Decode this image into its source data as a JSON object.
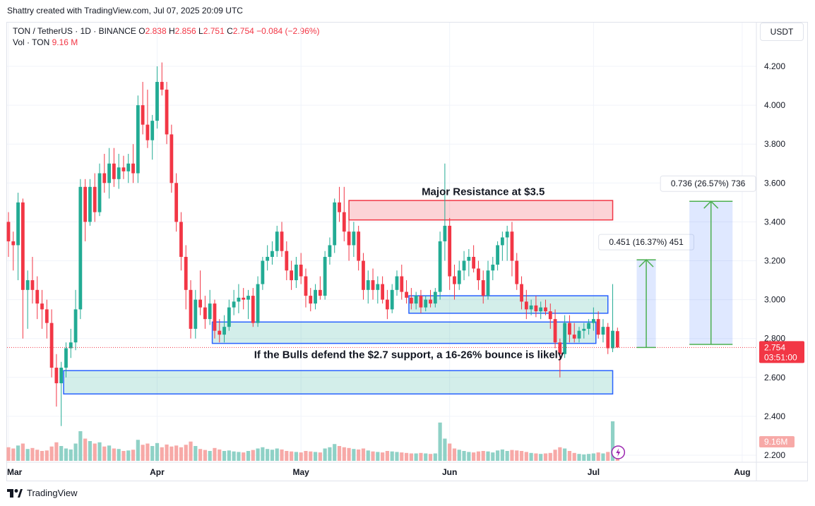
{
  "caption": "Shattry created with TradingView.com, Jul 07, 2025 20:09 UTC",
  "legend": {
    "symbol": "TON / TetherUS · 1D · BINANCE",
    "o_label": "O",
    "o": "2.838",
    "h_label": "H",
    "h": "2.856",
    "l_label": "L",
    "l": "2.751",
    "c_label": "C",
    "c": "2.754",
    "change": "−0.084 (−2.96%)",
    "vol_label": "Vol · TON",
    "vol": "9.16 M"
  },
  "currency_button": "USDT",
  "footer_brand": "TradingView",
  "colors": {
    "up": "#22ab94",
    "down": "#f23645",
    "up_vol": "#8fd1c6",
    "down_vol": "#f7a9a7"
  },
  "chart_data": {
    "type": "candlestick",
    "ylim": [
      2.2,
      4.3
    ],
    "y_ticks": [
      "4.200",
      "4.000",
      "3.800",
      "3.600",
      "3.400",
      "3.200",
      "3.000",
      "2.800",
      "2.600",
      "2.400",
      "2.200"
    ],
    "x_ticks": [
      {
        "label": "Mar",
        "day": 0
      },
      {
        "label": "Apr",
        "day": 31
      },
      {
        "label": "May",
        "day": 61
      },
      {
        "label": "Jun",
        "day": 92
      },
      {
        "label": "Jul",
        "day": 122
      },
      {
        "label": "Aug",
        "day": 153
      }
    ],
    "last_price": "2.754",
    "last_price_value": 2.754,
    "countdown": "03:51:00",
    "volume_badge": "9.16M",
    "zones": [
      {
        "name": "resistance-zone",
        "type": "resistance",
        "d0": 71,
        "d1": 126,
        "top": 3.51,
        "bottom": 3.41
      },
      {
        "name": "upper-support-zone",
        "type": "support",
        "d0": 83.5,
        "d1": 125,
        "top": 3.02,
        "bottom": 2.93
      },
      {
        "name": "mid-support-zone",
        "type": "support",
        "d0": 42.5,
        "d1": 122.5,
        "top": 2.885,
        "bottom": 2.775
      },
      {
        "name": "lower-support-zone",
        "type": "support",
        "d0": 11.5,
        "d1": 126,
        "top": 2.635,
        "bottom": 2.515
      }
    ],
    "projections": [
      {
        "name": "projection-small",
        "d0": 131,
        "d1": 135,
        "from": 2.754,
        "to": 3.205,
        "label": "0.451 (16.37%) 451"
      },
      {
        "name": "projection-large",
        "d0": 142,
        "d1": 151,
        "from": 2.77,
        "to": 3.506,
        "label": "0.736 (26.57%) 736"
      }
    ],
    "annotations": [
      {
        "name": "resistance-annotation",
        "text": "Major Resistance at $3.5",
        "day": 99,
        "price": 3.56
      },
      {
        "name": "support-annotation",
        "text": "If the Bulls defend the $2.7 support, a 16-26% bounce is likely",
        "day": 83.5,
        "price": 2.72
      }
    ],
    "candles": [
      {
        "o": 3.4,
        "h": 3.45,
        "l": 3.22,
        "c": 3.3,
        "v": 0.55
      },
      {
        "o": 3.3,
        "h": 3.35,
        "l": 3.15,
        "c": 3.28,
        "v": 0.5
      },
      {
        "o": 3.28,
        "h": 3.55,
        "l": 3.1,
        "c": 3.5,
        "v": 0.62
      },
      {
        "o": 3.5,
        "h": 3.52,
        "l": 2.8,
        "c": 3.05,
        "v": 0.7
      },
      {
        "o": 3.05,
        "h": 3.15,
        "l": 2.85,
        "c": 3.1,
        "v": 0.48
      },
      {
        "o": 3.1,
        "h": 3.22,
        "l": 2.98,
        "c": 3.05,
        "v": 0.52
      },
      {
        "o": 3.05,
        "h": 3.12,
        "l": 2.9,
        "c": 2.98,
        "v": 0.45
      },
      {
        "o": 2.98,
        "h": 3.05,
        "l": 2.85,
        "c": 2.95,
        "v": 0.4
      },
      {
        "o": 2.95,
        "h": 3.0,
        "l": 2.8,
        "c": 2.88,
        "v": 0.42
      },
      {
        "o": 2.88,
        "h": 2.95,
        "l": 2.6,
        "c": 2.65,
        "v": 0.58
      },
      {
        "o": 2.65,
        "h": 2.72,
        "l": 2.45,
        "c": 2.57,
        "v": 0.75
      },
      {
        "o": 2.57,
        "h": 2.68,
        "l": 2.35,
        "c": 2.65,
        "v": 0.6
      },
      {
        "o": 2.65,
        "h": 2.78,
        "l": 2.6,
        "c": 2.75,
        "v": 0.5
      },
      {
        "o": 2.75,
        "h": 2.85,
        "l": 2.7,
        "c": 2.78,
        "v": 0.46
      },
      {
        "o": 2.78,
        "h": 3.05,
        "l": 2.74,
        "c": 2.95,
        "v": 0.7
      },
      {
        "o": 2.95,
        "h": 3.62,
        "l": 2.9,
        "c": 3.58,
        "v": 1.2
      },
      {
        "o": 3.58,
        "h": 3.62,
        "l": 3.3,
        "c": 3.4,
        "v": 0.9
      },
      {
        "o": 3.4,
        "h": 3.62,
        "l": 3.38,
        "c": 3.58,
        "v": 0.8
      },
      {
        "o": 3.58,
        "h": 3.65,
        "l": 3.4,
        "c": 3.45,
        "v": 0.7
      },
      {
        "o": 3.45,
        "h": 3.7,
        "l": 3.43,
        "c": 3.65,
        "v": 0.75
      },
      {
        "o": 3.65,
        "h": 3.75,
        "l": 3.55,
        "c": 3.6,
        "v": 0.58
      },
      {
        "o": 3.6,
        "h": 3.78,
        "l": 3.52,
        "c": 3.7,
        "v": 0.62
      },
      {
        "o": 3.7,
        "h": 3.78,
        "l": 3.58,
        "c": 3.62,
        "v": 0.5
      },
      {
        "o": 3.62,
        "h": 3.75,
        "l": 3.57,
        "c": 3.68,
        "v": 0.48
      },
      {
        "o": 3.68,
        "h": 3.74,
        "l": 3.62,
        "c": 3.66,
        "v": 0.4
      },
      {
        "o": 3.66,
        "h": 3.75,
        "l": 3.6,
        "c": 3.7,
        "v": 0.42
      },
      {
        "o": 3.7,
        "h": 3.8,
        "l": 3.6,
        "c": 3.65,
        "v": 0.45
      },
      {
        "o": 3.65,
        "h": 4.05,
        "l": 3.6,
        "c": 4.0,
        "v": 0.85
      },
      {
        "o": 4.0,
        "h": 4.12,
        "l": 3.85,
        "c": 3.9,
        "v": 0.65
      },
      {
        "o": 3.9,
        "h": 4.08,
        "l": 3.78,
        "c": 3.82,
        "v": 0.7
      },
      {
        "o": 3.82,
        "h": 3.95,
        "l": 3.72,
        "c": 3.92,
        "v": 0.6
      },
      {
        "o": 3.92,
        "h": 4.2,
        "l": 3.88,
        "c": 4.12,
        "v": 0.72
      },
      {
        "o": 4.12,
        "h": 4.22,
        "l": 4.05,
        "c": 4.08,
        "v": 0.55
      },
      {
        "o": 4.08,
        "h": 4.12,
        "l": 3.8,
        "c": 3.85,
        "v": 0.66
      },
      {
        "o": 3.85,
        "h": 3.9,
        "l": 3.55,
        "c": 3.6,
        "v": 0.58
      },
      {
        "o": 3.6,
        "h": 3.65,
        "l": 3.35,
        "c": 3.4,
        "v": 0.62
      },
      {
        "o": 3.4,
        "h": 3.45,
        "l": 3.15,
        "c": 3.22,
        "v": 0.55
      },
      {
        "o": 3.22,
        "h": 3.28,
        "l": 2.95,
        "c": 3.05,
        "v": 0.65
      },
      {
        "o": 3.05,
        "h": 3.1,
        "l": 2.8,
        "c": 2.85,
        "v": 0.78
      },
      {
        "o": 2.85,
        "h": 3.05,
        "l": 2.8,
        "c": 3.0,
        "v": 0.6
      },
      {
        "o": 3.0,
        "h": 3.15,
        "l": 2.92,
        "c": 2.96,
        "v": 0.48
      },
      {
        "o": 2.96,
        "h": 3.02,
        "l": 2.85,
        "c": 2.9,
        "v": 0.44
      },
      {
        "o": 2.9,
        "h": 3.05,
        "l": 2.87,
        "c": 2.98,
        "v": 0.4
      },
      {
        "o": 2.98,
        "h": 3.0,
        "l": 2.8,
        "c": 2.84,
        "v": 0.52
      },
      {
        "o": 2.84,
        "h": 2.9,
        "l": 2.78,
        "c": 2.82,
        "v": 0.46
      },
      {
        "o": 2.82,
        "h": 2.92,
        "l": 2.78,
        "c": 2.86,
        "v": 0.4
      },
      {
        "o": 2.86,
        "h": 3.0,
        "l": 2.84,
        "c": 2.96,
        "v": 0.42
      },
      {
        "o": 2.96,
        "h": 3.05,
        "l": 2.92,
        "c": 2.99,
        "v": 0.38
      },
      {
        "o": 2.99,
        "h": 3.08,
        "l": 2.93,
        "c": 3.01,
        "v": 0.36
      },
      {
        "o": 3.01,
        "h": 3.06,
        "l": 2.95,
        "c": 3.0,
        "v": 0.34
      },
      {
        "o": 3.0,
        "h": 3.05,
        "l": 2.9,
        "c": 3.02,
        "v": 0.4
      },
      {
        "o": 3.02,
        "h": 3.06,
        "l": 2.86,
        "c": 2.88,
        "v": 0.44
      },
      {
        "o": 2.88,
        "h": 3.12,
        "l": 2.86,
        "c": 3.08,
        "v": 0.5
      },
      {
        "o": 3.08,
        "h": 3.22,
        "l": 3.05,
        "c": 3.2,
        "v": 0.55
      },
      {
        "o": 3.2,
        "h": 3.28,
        "l": 3.15,
        "c": 3.22,
        "v": 0.48
      },
      {
        "o": 3.22,
        "h": 3.3,
        "l": 3.18,
        "c": 3.25,
        "v": 0.45
      },
      {
        "o": 3.25,
        "h": 3.38,
        "l": 3.22,
        "c": 3.35,
        "v": 0.5
      },
      {
        "o": 3.35,
        "h": 3.4,
        "l": 3.22,
        "c": 3.25,
        "v": 0.46
      },
      {
        "o": 3.25,
        "h": 3.3,
        "l": 3.1,
        "c": 3.15,
        "v": 0.4
      },
      {
        "o": 3.15,
        "h": 3.2,
        "l": 3.05,
        "c": 3.1,
        "v": 0.38
      },
      {
        "o": 3.1,
        "h": 3.22,
        "l": 3.06,
        "c": 3.18,
        "v": 0.36
      },
      {
        "o": 3.18,
        "h": 3.24,
        "l": 3.08,
        "c": 3.12,
        "v": 0.34
      },
      {
        "o": 3.12,
        "h": 3.16,
        "l": 2.96,
        "c": 3.02,
        "v": 0.4
      },
      {
        "o": 3.02,
        "h": 3.06,
        "l": 2.94,
        "c": 2.98,
        "v": 0.38
      },
      {
        "o": 2.98,
        "h": 3.08,
        "l": 2.95,
        "c": 3.05,
        "v": 0.36
      },
      {
        "o": 3.05,
        "h": 3.12,
        "l": 3.0,
        "c": 3.02,
        "v": 0.34
      },
      {
        "o": 3.02,
        "h": 3.25,
        "l": 3.0,
        "c": 3.22,
        "v": 0.5
      },
      {
        "o": 3.22,
        "h": 3.32,
        "l": 3.18,
        "c": 3.28,
        "v": 0.55
      },
      {
        "o": 3.28,
        "h": 3.52,
        "l": 3.24,
        "c": 3.5,
        "v": 0.68
      },
      {
        "o": 3.5,
        "h": 3.58,
        "l": 3.4,
        "c": 3.45,
        "v": 0.6
      },
      {
        "o": 3.45,
        "h": 3.58,
        "l": 3.3,
        "c": 3.35,
        "v": 0.55
      },
      {
        "o": 3.35,
        "h": 3.42,
        "l": 3.2,
        "c": 3.28,
        "v": 0.52
      },
      {
        "o": 3.28,
        "h": 3.4,
        "l": 3.22,
        "c": 3.35,
        "v": 0.48
      },
      {
        "o": 3.35,
        "h": 3.38,
        "l": 3.15,
        "c": 3.2,
        "v": 0.46
      },
      {
        "o": 3.2,
        "h": 3.24,
        "l": 3.0,
        "c": 3.05,
        "v": 0.5
      },
      {
        "o": 3.05,
        "h": 3.15,
        "l": 2.98,
        "c": 3.1,
        "v": 0.42
      },
      {
        "o": 3.1,
        "h": 3.16,
        "l": 3.0,
        "c": 3.05,
        "v": 0.38
      },
      {
        "o": 3.05,
        "h": 3.12,
        "l": 2.98,
        "c": 3.08,
        "v": 0.36
      },
      {
        "o": 3.08,
        "h": 3.12,
        "l": 2.98,
        "c": 3.0,
        "v": 0.34
      },
      {
        "o": 3.0,
        "h": 3.05,
        "l": 2.9,
        "c": 2.95,
        "v": 0.4
      },
      {
        "o": 2.95,
        "h": 3.08,
        "l": 2.93,
        "c": 3.05,
        "v": 0.38
      },
      {
        "o": 3.05,
        "h": 3.15,
        "l": 3.02,
        "c": 3.12,
        "v": 0.36
      },
      {
        "o": 3.12,
        "h": 3.18,
        "l": 3.0,
        "c": 3.04,
        "v": 0.34
      },
      {
        "o": 3.04,
        "h": 3.1,
        "l": 2.98,
        "c": 3.01,
        "v": 0.32
      },
      {
        "o": 3.01,
        "h": 3.06,
        "l": 2.95,
        "c": 2.98,
        "v": 0.3
      },
      {
        "o": 2.98,
        "h": 3.04,
        "l": 2.95,
        "c": 3.02,
        "v": 0.3
      },
      {
        "o": 3.02,
        "h": 3.05,
        "l": 2.93,
        "c": 2.96,
        "v": 0.32
      },
      {
        "o": 2.96,
        "h": 3.02,
        "l": 2.94,
        "c": 3.0,
        "v": 0.3
      },
      {
        "o": 3.0,
        "h": 3.05,
        "l": 2.96,
        "c": 2.98,
        "v": 0.28
      },
      {
        "o": 2.98,
        "h": 3.06,
        "l": 2.96,
        "c": 3.04,
        "v": 0.3
      },
      {
        "o": 3.04,
        "h": 3.35,
        "l": 3.0,
        "c": 3.3,
        "v": 1.55
      },
      {
        "o": 3.3,
        "h": 3.7,
        "l": 3.2,
        "c": 3.38,
        "v": 0.9
      },
      {
        "o": 3.38,
        "h": 3.42,
        "l": 3.05,
        "c": 3.12,
        "v": 0.7
      },
      {
        "o": 3.12,
        "h": 3.18,
        "l": 3.0,
        "c": 3.08,
        "v": 0.5
      },
      {
        "o": 3.08,
        "h": 3.2,
        "l": 3.05,
        "c": 3.15,
        "v": 0.45
      },
      {
        "o": 3.15,
        "h": 3.25,
        "l": 3.1,
        "c": 3.2,
        "v": 0.4
      },
      {
        "o": 3.2,
        "h": 3.26,
        "l": 3.12,
        "c": 3.22,
        "v": 0.36
      },
      {
        "o": 3.22,
        "h": 3.28,
        "l": 3.14,
        "c": 3.16,
        "v": 0.34
      },
      {
        "o": 3.16,
        "h": 3.2,
        "l": 3.05,
        "c": 3.1,
        "v": 0.38
      },
      {
        "o": 3.1,
        "h": 3.15,
        "l": 2.98,
        "c": 3.02,
        "v": 0.4
      },
      {
        "o": 3.02,
        "h": 3.2,
        "l": 3.0,
        "c": 3.15,
        "v": 0.38
      },
      {
        "o": 3.15,
        "h": 3.22,
        "l": 3.1,
        "c": 3.18,
        "v": 0.34
      },
      {
        "o": 3.18,
        "h": 3.3,
        "l": 3.15,
        "c": 3.28,
        "v": 0.42
      },
      {
        "o": 3.28,
        "h": 3.35,
        "l": 3.2,
        "c": 3.32,
        "v": 0.46
      },
      {
        "o": 3.32,
        "h": 3.38,
        "l": 3.2,
        "c": 3.35,
        "v": 0.4
      },
      {
        "o": 3.35,
        "h": 3.4,
        "l": 3.12,
        "c": 3.2,
        "v": 0.44
      },
      {
        "o": 3.2,
        "h": 3.24,
        "l": 3.05,
        "c": 3.08,
        "v": 0.42
      },
      {
        "o": 3.08,
        "h": 3.12,
        "l": 2.95,
        "c": 2.99,
        "v": 0.4
      },
      {
        "o": 2.99,
        "h": 3.05,
        "l": 2.9,
        "c": 2.95,
        "v": 0.36
      },
      {
        "o": 2.95,
        "h": 3.0,
        "l": 2.92,
        "c": 2.97,
        "v": 0.32
      },
      {
        "o": 2.97,
        "h": 3.02,
        "l": 2.91,
        "c": 2.94,
        "v": 0.3
      },
      {
        "o": 2.94,
        "h": 2.99,
        "l": 2.9,
        "c": 2.96,
        "v": 0.28
      },
      {
        "o": 2.96,
        "h": 3.0,
        "l": 2.92,
        "c": 2.94,
        "v": 0.3
      },
      {
        "o": 2.94,
        "h": 2.98,
        "l": 2.85,
        "c": 2.9,
        "v": 0.32
      },
      {
        "o": 2.9,
        "h": 2.95,
        "l": 2.75,
        "c": 2.78,
        "v": 0.45
      },
      {
        "o": 2.78,
        "h": 2.8,
        "l": 2.6,
        "c": 2.72,
        "v": 0.55
      },
      {
        "o": 2.72,
        "h": 2.92,
        "l": 2.7,
        "c": 2.88,
        "v": 0.5
      },
      {
        "o": 2.88,
        "h": 2.92,
        "l": 2.78,
        "c": 2.82,
        "v": 0.4
      },
      {
        "o": 2.82,
        "h": 2.88,
        "l": 2.78,
        "c": 2.8,
        "v": 0.32
      },
      {
        "o": 2.8,
        "h": 2.86,
        "l": 2.78,
        "c": 2.84,
        "v": 0.28
      },
      {
        "o": 2.84,
        "h": 2.88,
        "l": 2.8,
        "c": 2.85,
        "v": 0.26
      },
      {
        "o": 2.85,
        "h": 2.9,
        "l": 2.82,
        "c": 2.88,
        "v": 0.28
      },
      {
        "o": 2.88,
        "h": 2.96,
        "l": 2.84,
        "c": 2.9,
        "v": 0.3
      },
      {
        "o": 2.9,
        "h": 2.94,
        "l": 2.8,
        "c": 2.82,
        "v": 0.34
      },
      {
        "o": 2.82,
        "h": 2.9,
        "l": 2.78,
        "c": 2.86,
        "v": 0.3
      },
      {
        "o": 2.86,
        "h": 2.88,
        "l": 2.72,
        "c": 2.75,
        "v": 0.36
      },
      {
        "o": 2.75,
        "h": 3.08,
        "l": 2.73,
        "c": 2.84,
        "v": 1.6
      },
      {
        "o": 2.838,
        "h": 2.856,
        "l": 2.751,
        "c": 2.754,
        "v": 0.45
      }
    ]
  }
}
